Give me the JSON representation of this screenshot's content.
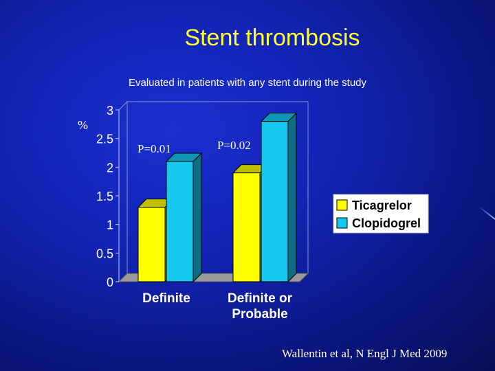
{
  "slide": {
    "title": "Stent thrombosis",
    "subtitle": "Evaluated in patients with any stent during the study",
    "citation": "Wallentin et al, N Engl J Med 2009"
  },
  "colors": {
    "background": "#1224b5",
    "title": "#ffff33",
    "ticagrelor": "#ffff00",
    "clopidogrel": "#14c8f0"
  },
  "chart_data": {
    "type": "bar",
    "title": "",
    "ylabel": "%",
    "categories": [
      "Definite",
      "Definite or Probable"
    ],
    "category_label_lines": [
      [
        "Definite"
      ],
      [
        "Definite or",
        "Probable"
      ]
    ],
    "series": [
      {
        "name": "Ticagrelor",
        "values": [
          1.3,
          1.9
        ],
        "color": "#ffff00"
      },
      {
        "name": "Clopidogrel",
        "values": [
          2.1,
          2.8
        ],
        "color": "#14c8f0"
      }
    ],
    "ylim": [
      0,
      3
    ],
    "yticks": [
      "0",
      "0.5",
      "1",
      "1.5",
      "2",
      "2.5",
      "3"
    ],
    "annotations": [
      "P=0.01",
      "P=0.02"
    ],
    "legend": "right",
    "grid": false,
    "style": "3d-bar"
  }
}
